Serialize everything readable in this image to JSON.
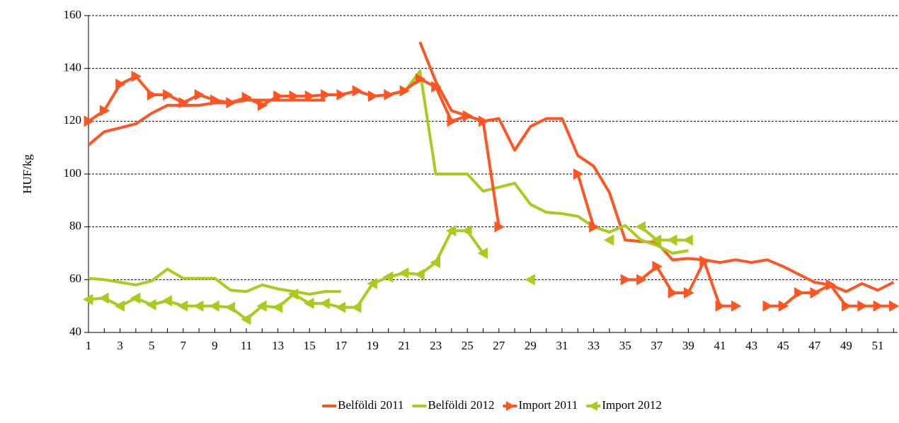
{
  "chart_data": {
    "type": "line",
    "y_label": "HUF/kg",
    "categories": [
      1,
      null,
      3,
      null,
      5,
      null,
      7,
      null,
      9,
      null,
      11,
      null,
      13,
      null,
      15,
      null,
      17,
      null,
      19,
      null,
      21,
      null,
      23,
      null,
      25,
      null,
      27,
      null,
      29,
      null,
      31,
      null,
      33,
      null,
      35,
      null,
      37,
      null,
      39,
      null,
      41,
      null,
      43,
      null,
      45,
      null,
      47,
      null,
      49,
      null,
      51,
      null
    ],
    "ylim": [
      40,
      160
    ],
    "yticks": [
      40,
      60,
      80,
      100,
      120,
      140,
      160
    ],
    "grid": true,
    "legend": "bottom",
    "series": [
      {
        "name": "Belföldi 2011",
        "color": "#ff5522",
        "marker": "none",
        "values": [
          111,
          116,
          117.5,
          119,
          123,
          126,
          126,
          126,
          127,
          127,
          128,
          128,
          128,
          128,
          128,
          128,
          null,
          null,
          null,
          null,
          null,
          150,
          135,
          124,
          122,
          120,
          121,
          109,
          118,
          121,
          121,
          107,
          103,
          93,
          75,
          74.5,
          74,
          67.5,
          68,
          67.5,
          66.5,
          67.5,
          66.5,
          67.5,
          65,
          62,
          59,
          58,
          55.5,
          58.5,
          56,
          59
        ]
      },
      {
        "name": "Belföldi 2012",
        "color": "#a8cc1c",
        "marker": "none",
        "values": [
          60.5,
          60,
          59,
          58,
          59.5,
          64,
          60.5,
          60.5,
          60.5,
          56,
          55.5,
          58,
          56.5,
          55.5,
          54.5,
          55.5,
          55.5,
          null,
          null,
          null,
          131,
          139,
          100,
          100,
          100,
          93.5,
          95,
          96.5,
          88.5,
          85.5,
          85,
          84,
          80,
          78,
          80.5,
          75,
          73,
          70,
          71,
          null,
          null,
          null,
          null,
          null,
          null,
          null,
          null,
          null,
          null,
          null,
          null,
          null
        ]
      },
      {
        "name": "Import 2011",
        "color": "#ff5522",
        "marker": "triangle-right",
        "values": [
          120,
          124,
          134,
          137,
          130,
          130,
          127,
          130,
          128,
          127,
          129,
          126,
          129.5,
          129.5,
          129.5,
          130,
          130,
          131.5,
          129.5,
          130,
          131.5,
          136,
          133,
          120,
          122,
          120,
          80,
          null,
          null,
          null,
          null,
          100,
          80,
          null,
          60,
          60,
          65,
          55,
          55,
          67,
          50,
          50,
          null,
          50,
          50,
          55,
          55,
          58,
          50,
          50,
          50,
          50
        ]
      },
      {
        "name": "Import 2012",
        "color": "#a8cc1c",
        "marker": "triangle-left",
        "values": [
          52.5,
          53,
          50,
          53,
          50.5,
          52,
          50,
          50,
          50,
          49.5,
          45,
          50,
          49.5,
          54.5,
          51,
          51,
          49.5,
          49.5,
          58.5,
          61,
          62.5,
          62,
          66.5,
          78.5,
          78.5,
          70,
          null,
          null,
          60,
          null,
          null,
          null,
          null,
          75,
          null,
          80,
          75,
          75,
          75,
          null,
          null,
          null,
          null,
          null,
          null,
          null,
          null,
          null,
          null,
          null,
          null,
          null
        ]
      }
    ]
  }
}
